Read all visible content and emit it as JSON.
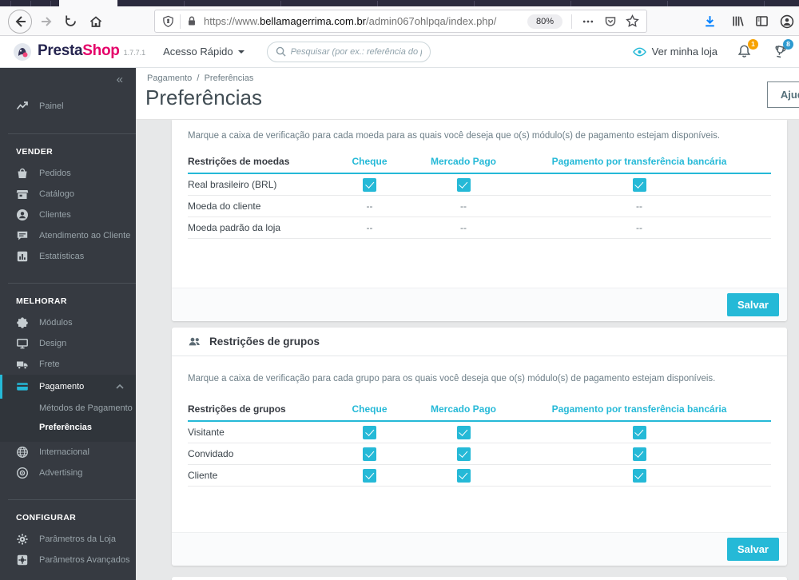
{
  "colors": {
    "primary_teal": "#25b9d7",
    "brand_pink": "#e50069",
    "brand_navy": "#262550",
    "sidebar_bg": "#363a41",
    "badge_orange": "#f7a200",
    "badge_blue": "#2e9ad0",
    "download_blue": "#0a84ff"
  },
  "browser": {
    "url_scheme": "https://www.",
    "url_domain": "bellamagerrima.com.br",
    "url_path": "/admin067ohlpqa/index.php/",
    "zoom_level": "80%"
  },
  "header": {
    "brand_first": "Presta",
    "brand_second": "Shop",
    "version": "1.7.7.1",
    "quick_access_label": "Acesso Rápido",
    "search_placeholder": "Pesquisar (por ex.: referência do produt",
    "view_shop_label": "Ver minha loja",
    "notifications_badge": "1",
    "activity_badge": "8"
  },
  "sidebar": {
    "collapse_glyph": "«",
    "sections": [
      {
        "items": [
          {
            "icon": "trending-up",
            "label": "Painel"
          }
        ]
      },
      {
        "header": "VENDER",
        "items": [
          {
            "icon": "basket",
            "label": "Pedidos"
          },
          {
            "icon": "store",
            "label": "Catálogo"
          },
          {
            "icon": "customers",
            "label": "Clientes"
          },
          {
            "icon": "chat",
            "label": "Atendimento ao Cliente"
          },
          {
            "icon": "stats",
            "label": "Estatísticas"
          }
        ]
      },
      {
        "header": "MELHORAR",
        "items": [
          {
            "icon": "puzzle",
            "label": "Módulos"
          },
          {
            "icon": "monitor",
            "label": "Design"
          },
          {
            "icon": "truck",
            "label": "Frete"
          },
          {
            "icon": "credit-card",
            "label": "Pagamento",
            "active": true,
            "children": [
              {
                "label": "Métodos de Pagamento"
              },
              {
                "label": "Preferências",
                "active": true
              }
            ]
          },
          {
            "icon": "globe",
            "label": "Internacional"
          },
          {
            "icon": "advertising",
            "label": "Advertising"
          }
        ]
      },
      {
        "header": "CONFIGURAR",
        "items": [
          {
            "icon": "gear",
            "label": "Parâmetros da Loja"
          },
          {
            "icon": "advanced",
            "label": "Parâmetros Avançados"
          }
        ]
      }
    ]
  },
  "page": {
    "breadcrumb": [
      "Pagamento",
      "Preferências"
    ],
    "breadcrumb_separator": "/",
    "title": "Preferências",
    "help_label": "Ajuda"
  },
  "currency_panel": {
    "description": "Marque a caixa de verificação para cada moeda para as quais você deseja que o(s) módulo(s) de pagamento estejam disponíveis.",
    "table": {
      "header": [
        "Restrições de moedas",
        "Cheque",
        "Mercado Pago",
        "Pagamento por transferência bancária"
      ],
      "rows": [
        {
          "label": "Real brasileiro (BRL)",
          "cells": [
            "checked",
            "checked",
            "checked"
          ]
        },
        {
          "label": "Moeda do cliente",
          "cells": [
            "--",
            "--",
            "--"
          ]
        },
        {
          "label": "Moeda padrão da loja",
          "cells": [
            "--",
            "--",
            "--"
          ]
        }
      ]
    },
    "save_label": "Salvar"
  },
  "group_panel": {
    "title": "Restrições de grupos",
    "description": "Marque a caixa de verificação para cada grupo para os quais você deseja que o(s) módulo(s) de pagamento estejam disponíveis.",
    "table": {
      "header": [
        "Restrições de grupos",
        "Cheque",
        "Mercado Pago",
        "Pagamento por transferência bancária"
      ],
      "rows": [
        {
          "label": "Visitante",
          "cells": [
            "checked",
            "checked",
            "checked"
          ]
        },
        {
          "label": "Convidado",
          "cells": [
            "checked",
            "checked",
            "checked"
          ]
        },
        {
          "label": "Cliente",
          "cells": [
            "checked",
            "checked",
            "checked"
          ]
        }
      ]
    },
    "save_label": "Salvar"
  }
}
